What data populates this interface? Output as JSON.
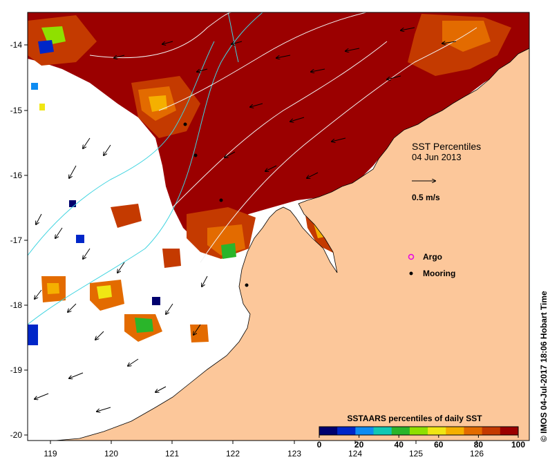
{
  "map": {
    "annotation_title": "SST Percentiles",
    "annotation_date": "04 Jun 2013",
    "scale_label": "0.5 m/s",
    "legend_argo": "Argo",
    "legend_mooring": "Mooring",
    "colorbar_title": "SSTAARS percentiles of daily SST",
    "colorbar_ticks": [
      "0",
      "20",
      "40",
      "60",
      "80",
      "100"
    ],
    "colorbar_colors": [
      "#00006e",
      "#0026c8",
      "#0e8cf2",
      "#10c8b4",
      "#2ab52a",
      "#8fe000",
      "#f0e614",
      "#f5b000",
      "#e36b00",
      "#c43a00",
      "#9b0000"
    ],
    "x_ticks": [
      "119",
      "120",
      "121",
      "122",
      "123",
      "124",
      "125",
      "126"
    ],
    "y_ticks": [
      "-14",
      "-15",
      "-16",
      "-17",
      "-18",
      "-19",
      "-20"
    ],
    "credit": "© IMOS 04-Jul-2017 18:06 Hobart Time",
    "colors": {
      "land": "#fcc79a",
      "warm": "#9b0000",
      "current_arrow": "#000000",
      "isobath_cyan": "#3fd4e0",
      "isobath_white": "#f2f2f2",
      "argo": "#e600e6"
    }
  }
}
